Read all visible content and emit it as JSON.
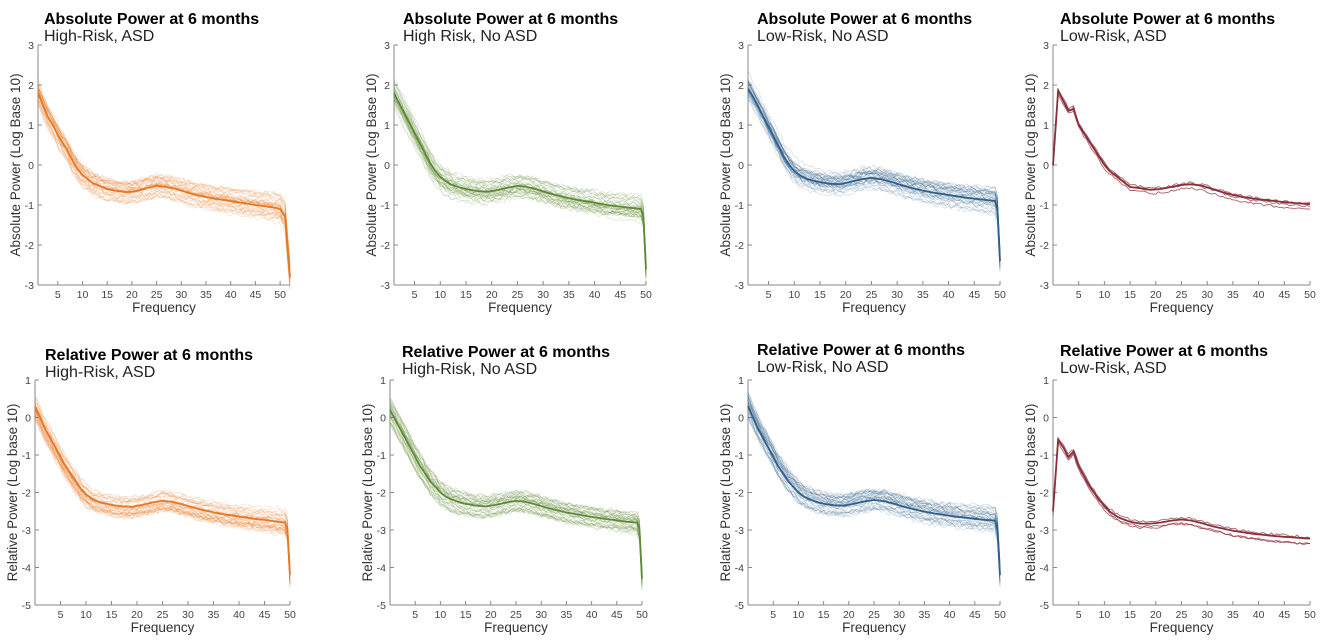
{
  "colors": {
    "high_risk_asd": "#e87722",
    "high_risk_no_asd": "#5e8a34",
    "low_risk_no_asd": "#2f5f8a",
    "low_risk_asd": "#8b2e3a"
  },
  "chart_data": [
    {
      "type": "line",
      "title": "Absolute Power at 6 months",
      "subtitle": "High-Risk, ASD",
      "xlabel": "Frequency",
      "ylabel": "Absolute Power (Log Base 10)",
      "xlim": [
        1,
        52
      ],
      "ylim": [
        -3,
        3
      ],
      "xticks": [
        5,
        10,
        15,
        20,
        25,
        30,
        35,
        40,
        45,
        50
      ],
      "yticks": [
        -3,
        -2,
        -1,
        0,
        1,
        2,
        3
      ],
      "color_key": "high_risk_asd",
      "series": [
        {
          "role": "mean",
          "x": [
            1,
            2,
            3,
            4,
            5,
            6,
            7,
            8,
            9,
            10,
            11,
            12,
            13,
            14,
            15,
            17,
            19,
            21,
            23,
            25,
            27,
            29,
            31,
            33,
            35,
            37,
            39,
            41,
            43,
            45,
            47,
            49,
            50,
            51,
            52
          ],
          "y": [
            1.8,
            1.5,
            1.2,
            1.0,
            0.75,
            0.55,
            0.35,
            0.1,
            -0.1,
            -0.25,
            -0.35,
            -0.45,
            -0.5,
            -0.55,
            -0.6,
            -0.65,
            -0.68,
            -0.65,
            -0.58,
            -0.52,
            -0.55,
            -0.6,
            -0.68,
            -0.75,
            -0.8,
            -0.85,
            -0.88,
            -0.92,
            -0.96,
            -1.0,
            -1.03,
            -1.07,
            -1.1,
            -1.3,
            -2.8
          ]
        }
      ]
    },
    {
      "type": "line",
      "title": "Absolute Power at 6 months",
      "subtitle": "High Risk, No ASD",
      "xlabel": "Frequency",
      "ylabel": "Absolute Power (Log Base 10)",
      "xlim": [
        1,
        50
      ],
      "ylim": [
        -3,
        3
      ],
      "xticks": [
        5,
        10,
        15,
        20,
        25,
        30,
        35,
        40,
        45,
        50
      ],
      "yticks": [
        -3,
        -2,
        -1,
        0,
        1,
        2,
        3
      ],
      "color_key": "high_risk_no_asd",
      "series": [
        {
          "role": "mean",
          "x": [
            1,
            2,
            3,
            4,
            5,
            6,
            7,
            8,
            9,
            10,
            11,
            12,
            13,
            14,
            15,
            17,
            19,
            21,
            23,
            25,
            27,
            29,
            31,
            33,
            35,
            37,
            39,
            41,
            43,
            45,
            47,
            49,
            49.5,
            50
          ],
          "y": [
            1.8,
            1.55,
            1.3,
            1.05,
            0.8,
            0.55,
            0.3,
            0.05,
            -0.15,
            -0.3,
            -0.4,
            -0.48,
            -0.53,
            -0.57,
            -0.6,
            -0.65,
            -0.67,
            -0.63,
            -0.57,
            -0.52,
            -0.55,
            -0.62,
            -0.7,
            -0.77,
            -0.83,
            -0.88,
            -0.92,
            -0.97,
            -1.01,
            -1.04,
            -1.07,
            -1.1,
            -1.3,
            -2.6
          ]
        }
      ]
    },
    {
      "type": "line",
      "title": "Absolute Power at 6 months",
      "subtitle": "Low-Risk, No ASD",
      "xlabel": "Frequency",
      "ylabel": "Absolute Power (Log Base 10)",
      "xlim": [
        1,
        50
      ],
      "ylim": [
        -3,
        3
      ],
      "xticks": [
        5,
        10,
        15,
        20,
        25,
        30,
        35,
        40,
        45,
        50
      ],
      "yticks": [
        -3,
        -2,
        -1,
        0,
        1,
        2,
        3
      ],
      "color_key": "low_risk_no_asd",
      "series": [
        {
          "role": "mean",
          "x": [
            1,
            2,
            3,
            4,
            5,
            6,
            7,
            8,
            9,
            10,
            11,
            12,
            13,
            14,
            15,
            17,
            19,
            21,
            23,
            25,
            27,
            29,
            31,
            33,
            35,
            37,
            39,
            41,
            43,
            45,
            47,
            49,
            49.5,
            50
          ],
          "y": [
            1.9,
            1.7,
            1.45,
            1.2,
            0.95,
            0.7,
            0.45,
            0.2,
            0.0,
            -0.15,
            -0.25,
            -0.32,
            -0.37,
            -0.4,
            -0.43,
            -0.47,
            -0.48,
            -0.42,
            -0.36,
            -0.32,
            -0.36,
            -0.43,
            -0.51,
            -0.58,
            -0.64,
            -0.69,
            -0.73,
            -0.77,
            -0.81,
            -0.84,
            -0.87,
            -0.9,
            -1.1,
            -2.4
          ]
        }
      ]
    },
    {
      "type": "line",
      "title": "Absolute Power at 6 months",
      "subtitle": "Low-Risk, ASD",
      "xlabel": "Frequency",
      "ylabel": "Absolute Power (Log Base 10)",
      "xlim": [
        0,
        50
      ],
      "ylim": [
        -3,
        3
      ],
      "xticks": [
        5,
        10,
        15,
        20,
        25,
        30,
        35,
        40,
        45,
        50
      ],
      "yticks": [
        -3,
        -2,
        -1,
        0,
        1,
        2,
        3
      ],
      "color_key": "low_risk_asd",
      "series": [
        {
          "role": "mean",
          "x": [
            0,
            1,
            2,
            3,
            4,
            5,
            6,
            7,
            8,
            9,
            10,
            11,
            12,
            13,
            14,
            15,
            17,
            19,
            21,
            23,
            25,
            27,
            29,
            31,
            33,
            35,
            37,
            39,
            41,
            43,
            45,
            47,
            49,
            50
          ],
          "y": [
            0.0,
            1.85,
            1.6,
            1.35,
            1.4,
            1.0,
            0.8,
            0.6,
            0.4,
            0.2,
            0.0,
            -0.15,
            -0.25,
            -0.35,
            -0.45,
            -0.55,
            -0.58,
            -0.62,
            -0.6,
            -0.55,
            -0.5,
            -0.48,
            -0.52,
            -0.6,
            -0.68,
            -0.75,
            -0.8,
            -0.84,
            -0.87,
            -0.9,
            -0.93,
            -0.95,
            -0.97,
            -0.98
          ]
        }
      ]
    },
    {
      "type": "line",
      "title": "Relative Power at 6 months",
      "subtitle": "High-Risk, ASD",
      "xlabel": "Frequency",
      "ylabel": "Relative Power (Log base 10)",
      "xlim": [
        0,
        50
      ],
      "ylim": [
        -5,
        1
      ],
      "xticks": [
        5,
        10,
        15,
        20,
        25,
        30,
        35,
        40,
        45,
        50
      ],
      "yticks": [
        -5,
        -4,
        -3,
        -2,
        -1,
        0,
        1
      ],
      "color_key": "high_risk_asd",
      "series": [
        {
          "role": "mean",
          "x": [
            0,
            1,
            2,
            3,
            4,
            5,
            6,
            7,
            8,
            9,
            10,
            11,
            12,
            13,
            14,
            15,
            17,
            19,
            21,
            23,
            25,
            27,
            29,
            31,
            33,
            35,
            37,
            39,
            41,
            43,
            45,
            47,
            49,
            49.5,
            50
          ],
          "y": [
            0.3,
            0.0,
            -0.3,
            -0.55,
            -0.8,
            -1.05,
            -1.3,
            -1.5,
            -1.7,
            -1.9,
            -2.05,
            -2.15,
            -2.22,
            -2.27,
            -2.3,
            -2.33,
            -2.37,
            -2.38,
            -2.33,
            -2.27,
            -2.22,
            -2.25,
            -2.32,
            -2.4,
            -2.47,
            -2.53,
            -2.58,
            -2.62,
            -2.66,
            -2.7,
            -2.73,
            -2.77,
            -2.8,
            -3.0,
            -4.2
          ]
        }
      ]
    },
    {
      "type": "line",
      "title": "Relative Power at 6 months",
      "subtitle": "High-Risk, No ASD",
      "xlabel": "Frequency",
      "ylabel": "Relative Power (Log base 10)",
      "xlim": [
        0,
        50
      ],
      "ylim": [
        -5,
        1
      ],
      "xticks": [
        5,
        10,
        15,
        20,
        25,
        30,
        35,
        40,
        45,
        50
      ],
      "yticks": [
        -5,
        -4,
        -3,
        -2,
        -1,
        0,
        1
      ],
      "color_key": "high_risk_no_asd",
      "series": [
        {
          "role": "mean",
          "x": [
            0,
            1,
            2,
            3,
            4,
            5,
            6,
            7,
            8,
            9,
            10,
            11,
            12,
            13,
            14,
            15,
            17,
            19,
            21,
            23,
            25,
            27,
            29,
            31,
            33,
            35,
            37,
            39,
            41,
            43,
            45,
            47,
            49,
            49.5,
            50
          ],
          "y": [
            0.2,
            -0.05,
            -0.3,
            -0.55,
            -0.8,
            -1.05,
            -1.3,
            -1.5,
            -1.7,
            -1.85,
            -2.0,
            -2.1,
            -2.17,
            -2.22,
            -2.27,
            -2.3,
            -2.35,
            -2.37,
            -2.33,
            -2.27,
            -2.22,
            -2.25,
            -2.32,
            -2.4,
            -2.47,
            -2.53,
            -2.58,
            -2.63,
            -2.67,
            -2.71,
            -2.74,
            -2.78,
            -2.8,
            -3.0,
            -4.3
          ]
        }
      ]
    },
    {
      "type": "line",
      "title": "Relative Power at 6 months",
      "subtitle": "Low-Risk, No ASD",
      "xlabel": "Frequency",
      "ylabel": "Relative Power (Log base 10)",
      "xlim": [
        0,
        50
      ],
      "ylim": [
        -5,
        1
      ],
      "xticks": [
        5,
        10,
        15,
        20,
        25,
        30,
        35,
        40,
        45,
        50
      ],
      "yticks": [
        -5,
        -4,
        -3,
        -2,
        -1,
        0,
        1
      ],
      "color_key": "low_risk_no_asd",
      "series": [
        {
          "role": "mean",
          "x": [
            0,
            1,
            2,
            3,
            4,
            5,
            6,
            7,
            8,
            9,
            10,
            11,
            12,
            13,
            14,
            15,
            17,
            19,
            21,
            23,
            25,
            27,
            29,
            31,
            33,
            35,
            37,
            39,
            41,
            43,
            45,
            47,
            49,
            49.5,
            50
          ],
          "y": [
            0.3,
            0.0,
            -0.3,
            -0.55,
            -0.8,
            -1.05,
            -1.3,
            -1.5,
            -1.7,
            -1.85,
            -2.0,
            -2.1,
            -2.17,
            -2.22,
            -2.27,
            -2.3,
            -2.34,
            -2.35,
            -2.3,
            -2.24,
            -2.2,
            -2.23,
            -2.3,
            -2.38,
            -2.45,
            -2.51,
            -2.56,
            -2.6,
            -2.64,
            -2.67,
            -2.7,
            -2.73,
            -2.75,
            -3.0,
            -4.2
          ]
        }
      ]
    },
    {
      "type": "line",
      "title": "Relative Power at 6 months",
      "subtitle": "Low-Risk, ASD",
      "xlabel": "Frequency",
      "ylabel": "Relative Power (Log base 10)",
      "xlim": [
        0,
        50
      ],
      "ylim": [
        -5,
        1
      ],
      "xticks": [
        5,
        10,
        15,
        20,
        25,
        30,
        35,
        40,
        45,
        50
      ],
      "yticks": [
        -5,
        -4,
        -3,
        -2,
        -1,
        0,
        1
      ],
      "color_key": "low_risk_asd",
      "series": [
        {
          "role": "mean",
          "x": [
            0,
            1,
            2,
            3,
            4,
            5,
            6,
            7,
            8,
            9,
            10,
            11,
            12,
            13,
            14,
            15,
            17,
            19,
            21,
            23,
            25,
            27,
            29,
            31,
            33,
            35,
            37,
            39,
            41,
            43,
            45,
            47,
            49,
            50
          ],
          "y": [
            -2.5,
            -0.6,
            -0.8,
            -1.05,
            -0.9,
            -1.3,
            -1.55,
            -1.8,
            -2.0,
            -2.2,
            -2.35,
            -2.5,
            -2.6,
            -2.68,
            -2.73,
            -2.78,
            -2.83,
            -2.83,
            -2.8,
            -2.75,
            -2.72,
            -2.75,
            -2.82,
            -2.9,
            -2.96,
            -3.02,
            -3.06,
            -3.1,
            -3.13,
            -3.16,
            -3.18,
            -3.2,
            -3.22,
            -3.23
          ]
        }
      ]
    }
  ]
}
